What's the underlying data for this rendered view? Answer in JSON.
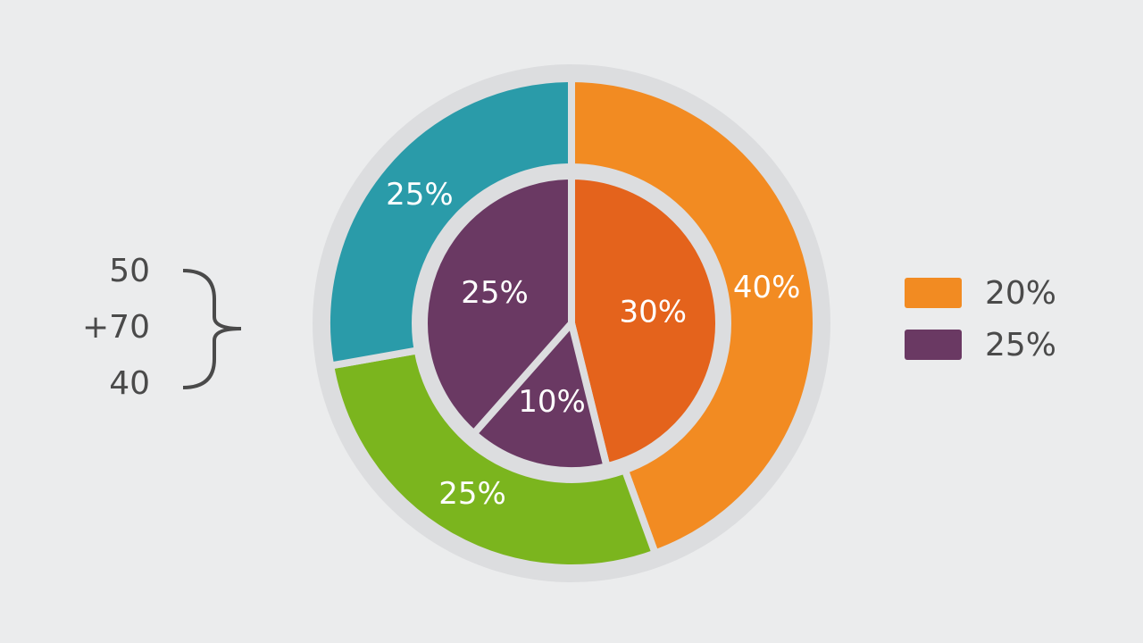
{
  "chart_data": [
    {
      "type": "donut",
      "values": [
        40,
        25,
        25
      ],
      "value_labels": [
        "40%",
        "25%",
        "25%"
      ],
      "colors": [
        "#f28b22",
        "#7bb51e",
        "#2a9ba9"
      ]
    },
    {
      "type": "pie",
      "values": [
        30,
        10,
        25
      ],
      "value_labels": [
        "30%",
        "10%",
        "25%"
      ],
      "colors": [
        "#e4631c",
        "#6a3963",
        "#6a3963"
      ]
    }
  ],
  "legend": [
    {
      "label": "20%",
      "color": "#f28b22"
    },
    {
      "label": "25%",
      "color": "#6a3963"
    }
  ],
  "annotations": [
    "50",
    "+70",
    "40"
  ]
}
